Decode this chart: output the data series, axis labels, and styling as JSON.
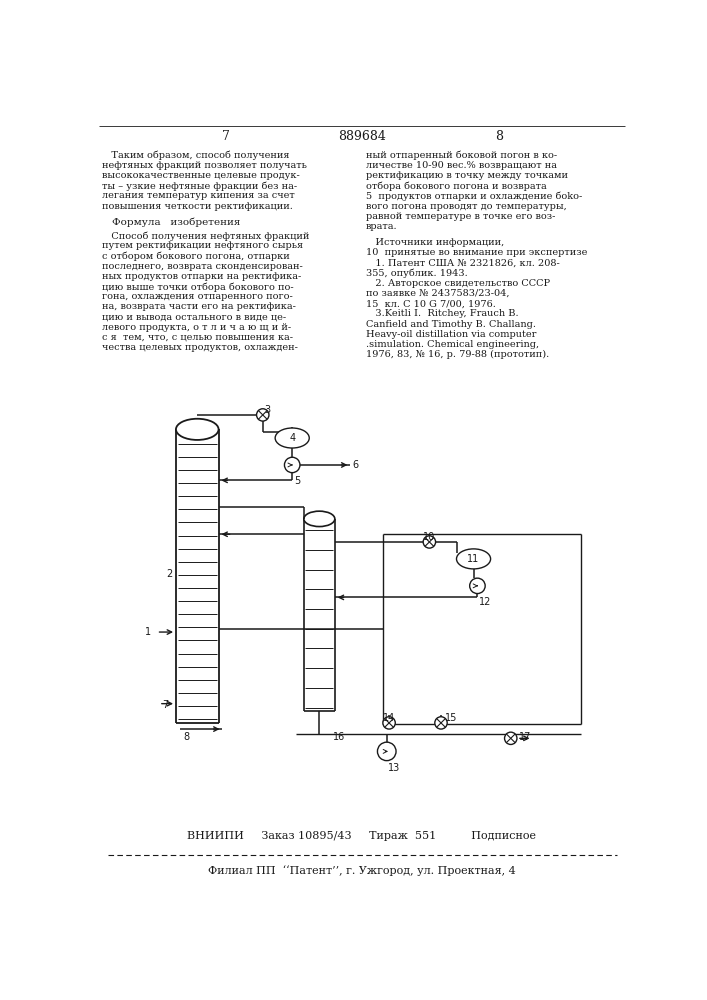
{
  "page_number_left": "7",
  "page_number_right": "8",
  "patent_number": "889684",
  "left_col_text": [
    "   Таким образом, способ получения",
    "нефтяных фракций позволяет получать",
    "высококачественные целевые продук-",
    "ты – узкие нефтяные фракции без на-",
    "легания температур кипения за счет",
    "повышения четкости ректификации."
  ],
  "formula_title": "Формула   изобретения",
  "formula_text": [
    "   Способ получения нефтяных фракций",
    "путем ректификации нефтяного сырья",
    "с отбором бокового погона, отпарки",
    "последнего, возврата сконденсирован-",
    "ных продуктов отпарки на ректифика-",
    "цию выше точки отбора бокового по-",
    "гона, охлаждения отпаренного пого-",
    "на, возврата части его на ректифика-",
    "цию и вывода остального в виде це-",
    "левого продукта, о т л и ч а ю щ и й-",
    "с я  тем, что, с целью повышения ка-",
    "чества целевых продуктов, охлажден-"
  ],
  "right_col_text": [
    "ный отпаренный боковой погон в ко-",
    "личестве 10-90 вес.% возвращают на",
    "ректификацию в точку между точками",
    "отбора бокового погона и возврата",
    "5  продуктов отпарки и охлаждение бoko-",
    "вого погона проводят до температуры,",
    "равной температуре в точке его воз-",
    "врата."
  ],
  "sources_title": "   Источники информации,",
  "sources_text": [
    "10  принятые во внимание при экспертизе",
    "   1. Патент США № 2321826, кл. 208-",
    "355, опублик. 1943.",
    "   2. Авторское свидетельство СССР",
    "по заявке № 2437583/23-04,",
    "15  кл. С 10 G 7/00, 1976.",
    "   3.Keitli I.  Ritchey, Frauch B.",
    "Canfield and Timothy B. Challang.",
    "Heavy-oil distillation via computer",
    ".simulation. Chemical engineering,",
    "1976, 83, № 16, p. 79-88 (прототип)."
  ],
  "footer_main": "ВНИИПИ     Заказ 10895/43     Тираж  551          Подписное",
  "footer_address": "Филиал ПП  ‘‘Патент’’, г. Ужгород, ул. Проектная, 4",
  "bg_color": "#ffffff",
  "text_color": "#1a1a1a",
  "line_color": "#1a1a1a"
}
